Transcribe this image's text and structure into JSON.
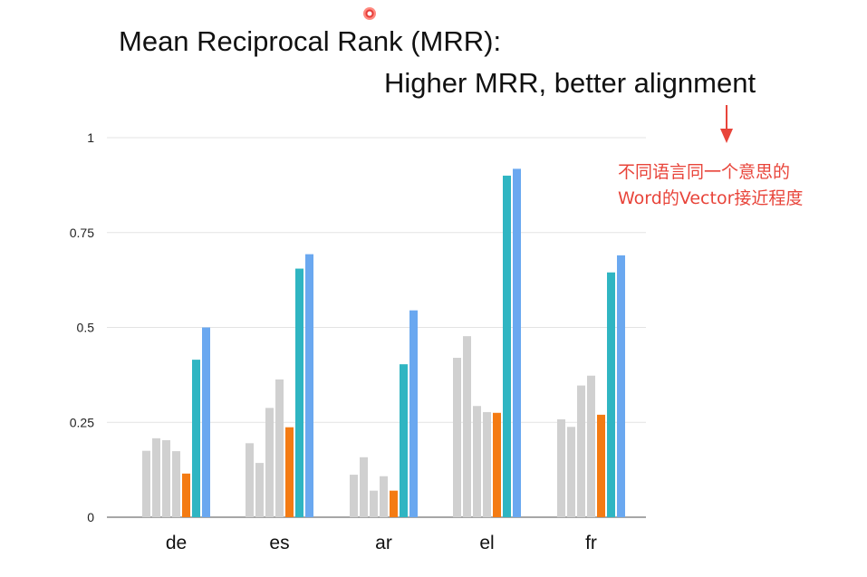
{
  "titles": {
    "line1": "Mean Reciprocal Rank (MRR):",
    "line2": "Higher MRR, better alignment"
  },
  "annotation": {
    "line1": "不同语言同一个意思的",
    "line2": "Word的Vector接近程度",
    "color": "#e8443a"
  },
  "chart_data": {
    "type": "bar",
    "categories": [
      "de",
      "es",
      "ar",
      "el",
      "fr"
    ],
    "ylim": [
      0,
      1
    ],
    "yticks": [
      "0",
      "0.25",
      "0.5",
      "0.75",
      "1"
    ],
    "grid": true,
    "series": [
      {
        "color": "#d0d0d0",
        "values": [
          0.175,
          0.195,
          0.112,
          0.42,
          0.258
        ]
      },
      {
        "color": "#d0d0d0",
        "values": [
          0.208,
          0.143,
          0.158,
          0.477,
          0.238
        ]
      },
      {
        "color": "#d0d0d0",
        "values": [
          0.203,
          0.288,
          0.07,
          0.293,
          0.347
        ]
      },
      {
        "color": "#d0d0d0",
        "values": [
          0.174,
          0.363,
          0.108,
          0.277,
          0.373
        ]
      },
      {
        "color": "#f47b13",
        "values": [
          0.115,
          0.237,
          0.07,
          0.275,
          0.27
        ]
      },
      {
        "color": "#2fb5c2",
        "values": [
          0.415,
          0.655,
          0.403,
          0.9,
          0.645
        ]
      },
      {
        "color": "#6aa8f0",
        "values": [
          0.5,
          0.693,
          0.545,
          0.918,
          0.69
        ]
      }
    ]
  }
}
